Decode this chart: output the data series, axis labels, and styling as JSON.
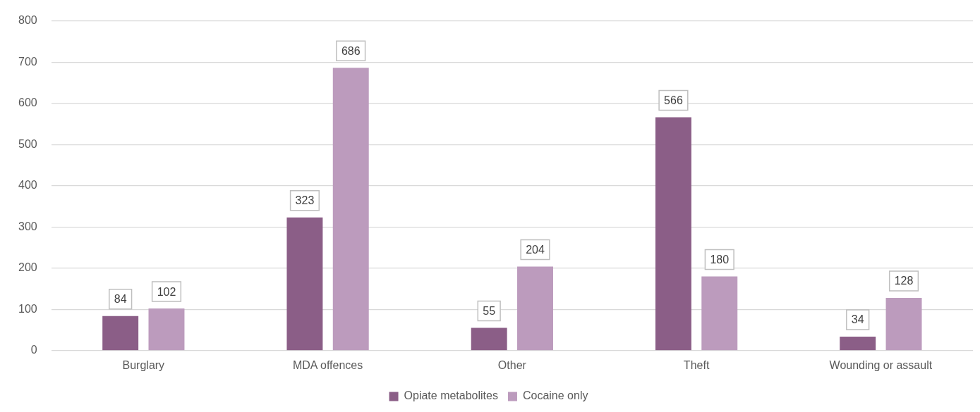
{
  "chart_data": {
    "type": "bar",
    "categories": [
      "Burglary",
      "MDA offences",
      "Other",
      "Theft",
      "Wounding or assault"
    ],
    "series": [
      {
        "name": "Opiate metabolites",
        "color": "#8b5e87",
        "values": [
          84,
          323,
          55,
          566,
          34
        ]
      },
      {
        "name": "Cocaine only",
        "color": "#bc9bbd",
        "values": [
          102,
          686,
          204,
          180,
          128
        ]
      }
    ],
    "ylim": [
      0,
      800
    ],
    "yticks": [
      0,
      100,
      200,
      300,
      400,
      500,
      600,
      700,
      800
    ],
    "grid": "y",
    "legend": "bottom",
    "data_labels": true
  }
}
